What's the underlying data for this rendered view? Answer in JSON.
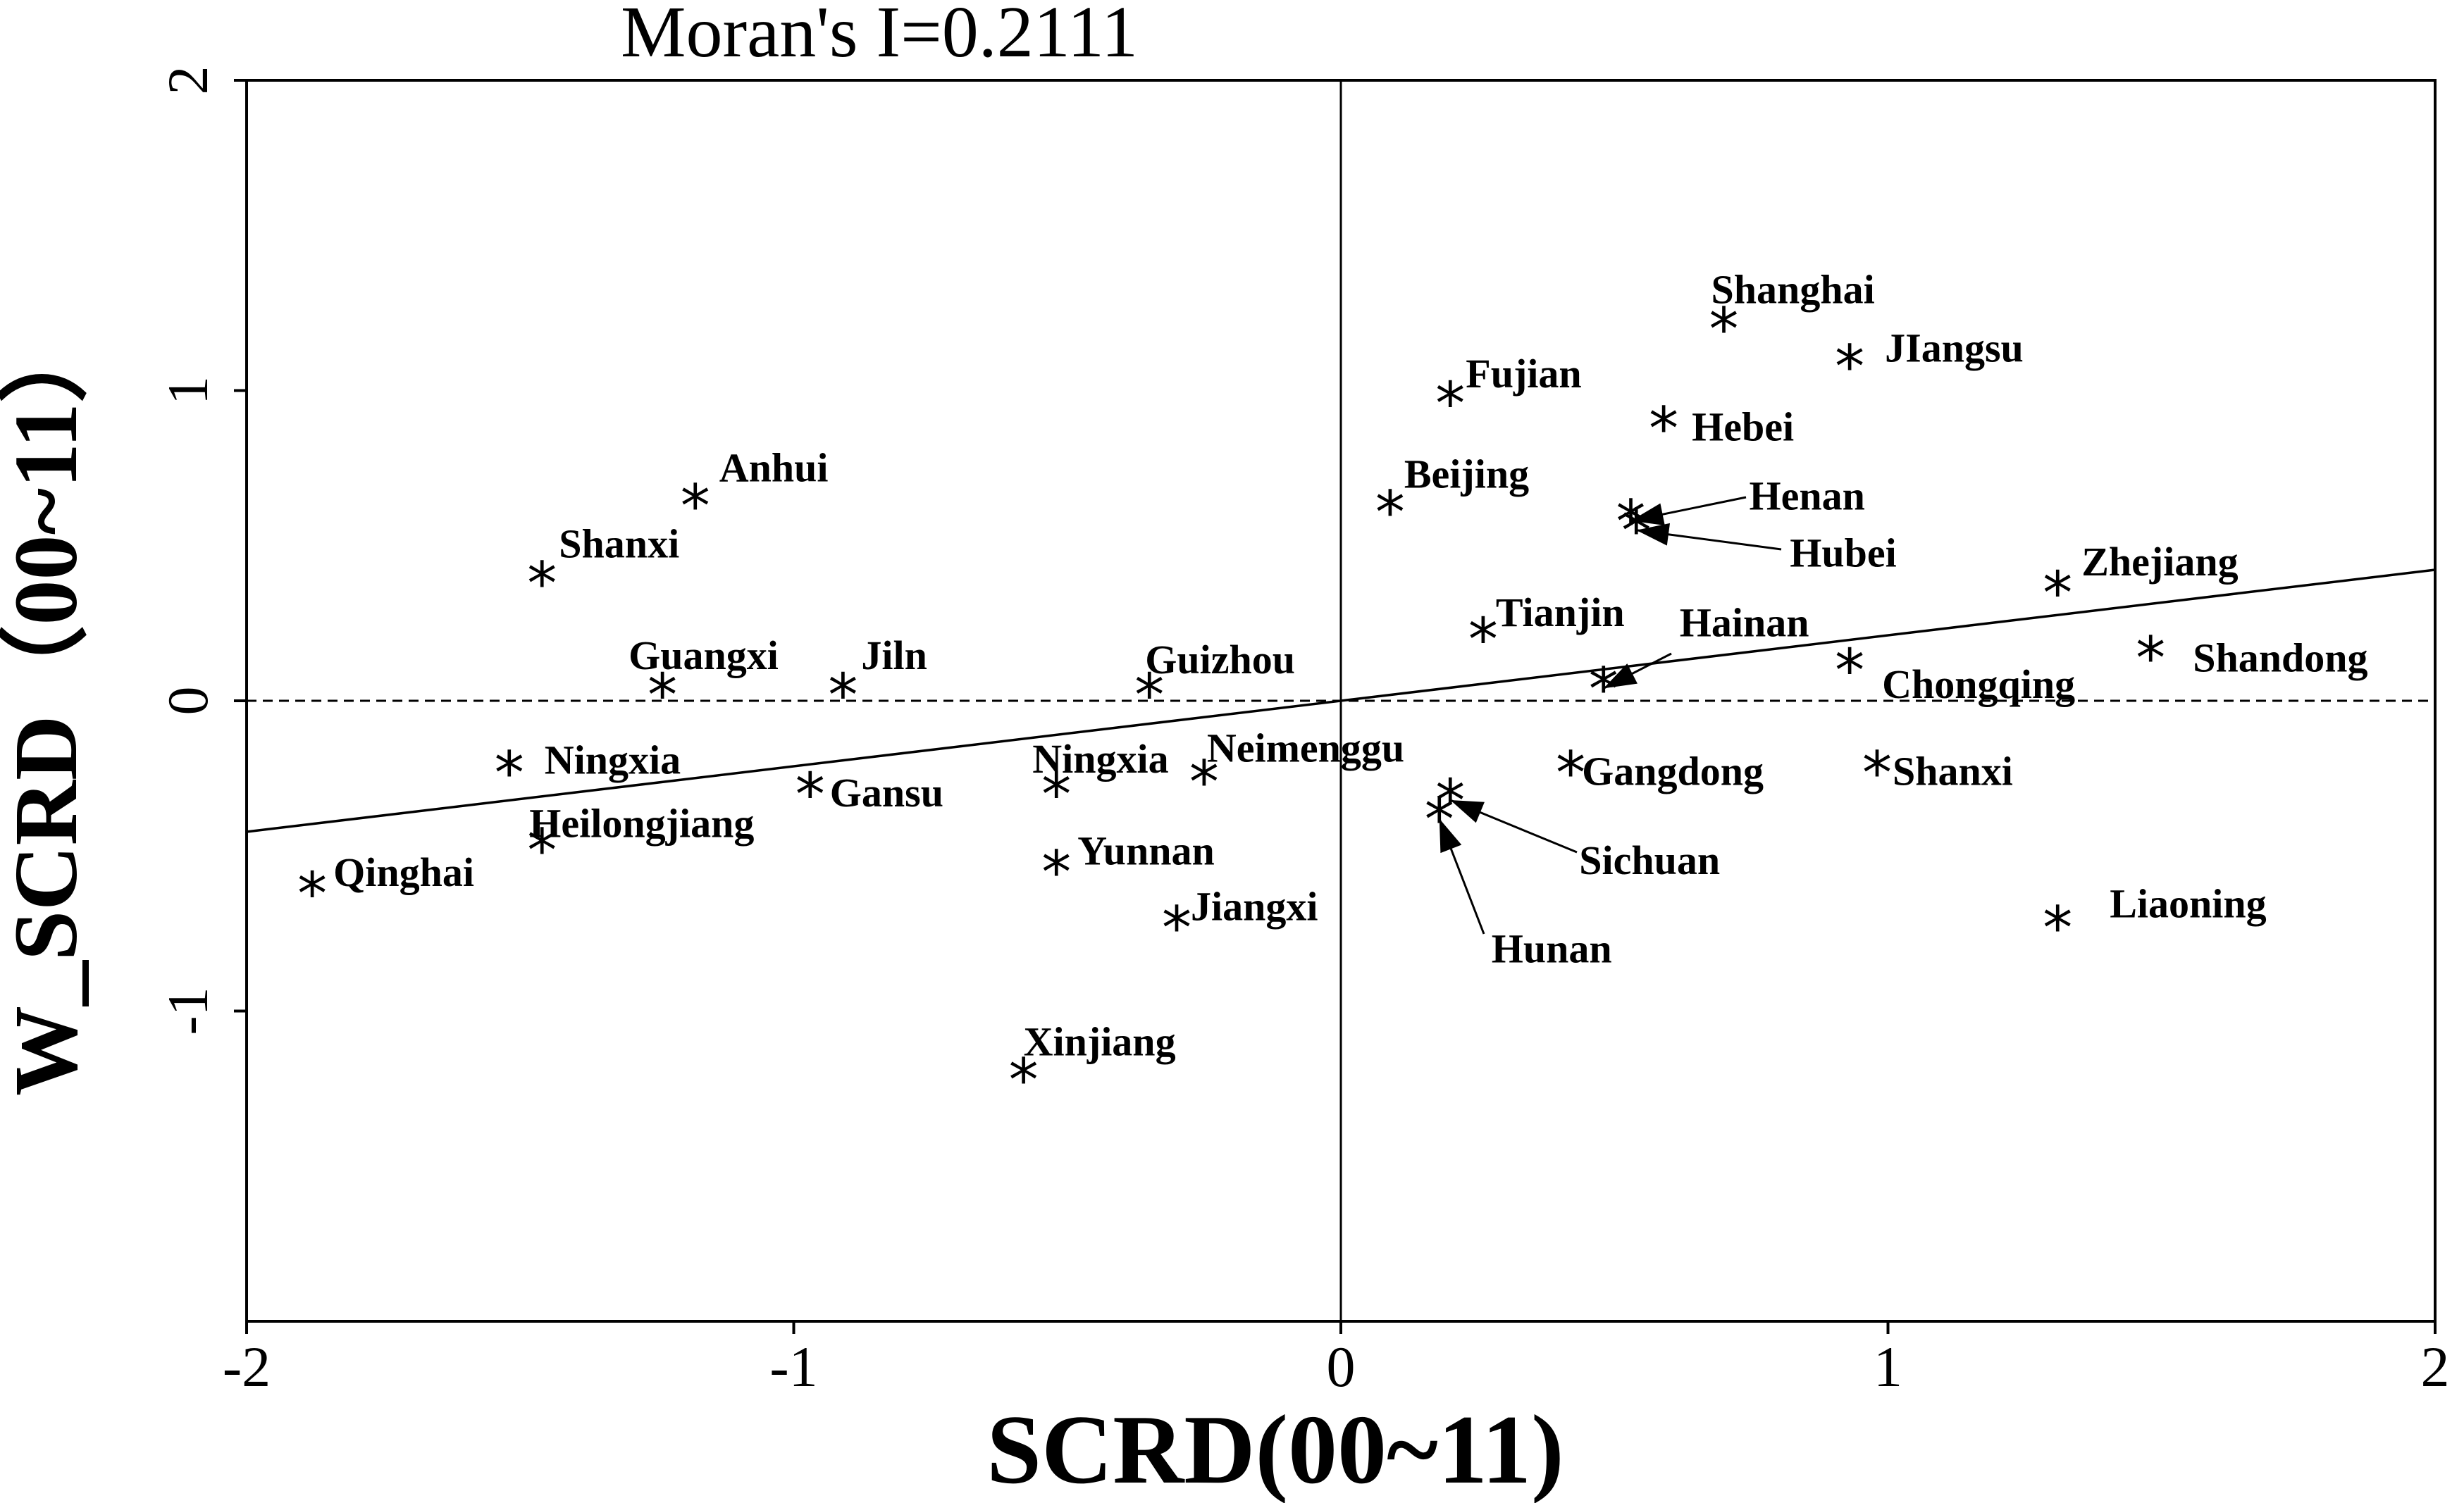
{
  "chart_data": {
    "type": "scatter",
    "title": "Moran's I=0.2111",
    "xlabel": "SCRD(00~11)",
    "ylabel": "W_SCRD（00~11）",
    "xlim": [
      -2,
      2
    ],
    "ylim": [
      -2,
      2
    ],
    "xticks": [
      "-2",
      "-1",
      "0",
      "1",
      "2"
    ],
    "yticks": [
      "2",
      "1",
      "0",
      "-1"
    ],
    "grid": false,
    "marker": "*",
    "reference_lines": {
      "x": 0,
      "y": 0
    },
    "regression_line": {
      "slope": 0.2111,
      "intercept": 0
    },
    "points": [
      {
        "label": "Shanghai",
        "x": 0.7,
        "y": 1.2
      },
      {
        "label": "JIangsu",
        "x": 0.93,
        "y": 1.08
      },
      {
        "label": "Fujian",
        "x": 0.2,
        "y": 0.96
      },
      {
        "label": "Hebei",
        "x": 0.59,
        "y": 0.88
      },
      {
        "label": "Beijing",
        "x": 0.09,
        "y": 0.61
      },
      {
        "label": "Henan",
        "x": 0.53,
        "y": 0.58
      },
      {
        "label": "Hubei",
        "x": 0.54,
        "y": 0.55
      },
      {
        "label": "Zhejiang",
        "x": 1.31,
        "y": 0.35
      },
      {
        "label": "Tianjin",
        "x": 0.26,
        "y": 0.2
      },
      {
        "label": "Hainan",
        "x": 0.48,
        "y": 0.04
      },
      {
        "label": "Chongqing",
        "x": 0.93,
        "y": 0.1
      },
      {
        "label": "Shandong",
        "x": 1.48,
        "y": 0.14
      },
      {
        "label": "Gangdong",
        "x": 0.42,
        "y": -0.23
      },
      {
        "label": "Shanxi",
        "x": 0.98,
        "y": -0.23
      },
      {
        "label": "Sichuan",
        "x": 0.2,
        "y": -0.32
      },
      {
        "label": "Hunan",
        "x": 0.18,
        "y": -0.38
      },
      {
        "label": "Liaoning",
        "x": 1.31,
        "y": -0.73
      },
      {
        "label": "Anhui",
        "x": -1.18,
        "y": 0.63
      },
      {
        "label": "Shanxi",
        "x": -1.46,
        "y": 0.38
      },
      {
        "label": "Guangxi",
        "x": -1.24,
        "y": 0.02
      },
      {
        "label": "Jiln",
        "x": -0.91,
        "y": 0.02
      },
      {
        "label": "Guizhou",
        "x": -0.35,
        "y": 0.02
      },
      {
        "label": "Ningxia",
        "x": -1.52,
        "y": -0.23
      },
      {
        "label": "Gansu",
        "x": -0.97,
        "y": -0.3
      },
      {
        "label": "Heilongjiang",
        "x": -1.46,
        "y": -0.48
      },
      {
        "label": "Qinghai",
        "x": -1.88,
        "y": -0.62
      },
      {
        "label": "Ningxia",
        "x": -0.52,
        "y": -0.3
      },
      {
        "label": "Neimenggu",
        "x": -0.25,
        "y": -0.26
      },
      {
        "label": "Yunnan",
        "x": -0.52,
        "y": -0.55
      },
      {
        "label": "Jiangxi",
        "x": -0.3,
        "y": -0.73
      },
      {
        "label": "Xinjiang",
        "x": -0.58,
        "y": -1.22
      }
    ]
  }
}
